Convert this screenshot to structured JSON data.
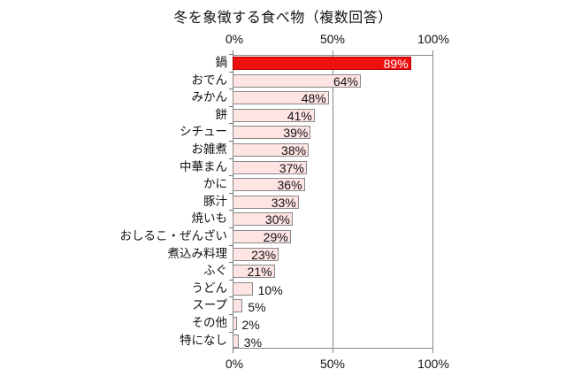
{
  "chart_data": {
    "type": "bar",
    "orientation": "horizontal",
    "title": "冬を象徴する食べ物（複数回答）",
    "xlabel": "",
    "ylabel": "",
    "xlim": [
      0,
      100
    ],
    "x_ticks": [
      "0%",
      "50%",
      "100%"
    ],
    "x_ticks_position": "top and bottom",
    "grid": "vertical at 50% and 100%",
    "legend": "none",
    "categories": [
      "鍋",
      "おでん",
      "みかん",
      "餅",
      "シチュー",
      "お雑煮",
      "中華まん",
      "かに",
      "豚汁",
      "焼いも",
      "おしるこ・ぜんざい",
      "煮込み料理",
      "ふぐ",
      "うどん",
      "スープ",
      "その他",
      "特になし"
    ],
    "values": [
      89,
      64,
      48,
      41,
      39,
      38,
      37,
      36,
      33,
      30,
      29,
      23,
      21,
      10,
      5,
      2,
      3
    ],
    "labels": [
      "89%",
      "64%",
      "48%",
      "41%",
      "39%",
      "38%",
      "37%",
      "36%",
      "33%",
      "30%",
      "29%",
      "23%",
      "21%",
      "10%",
      "5%",
      "2%",
      "3%"
    ],
    "colors": {
      "highlight": "#f01010",
      "default": "#ffe4e4",
      "border": "#888888"
    },
    "highlighted_category": "鍋"
  }
}
